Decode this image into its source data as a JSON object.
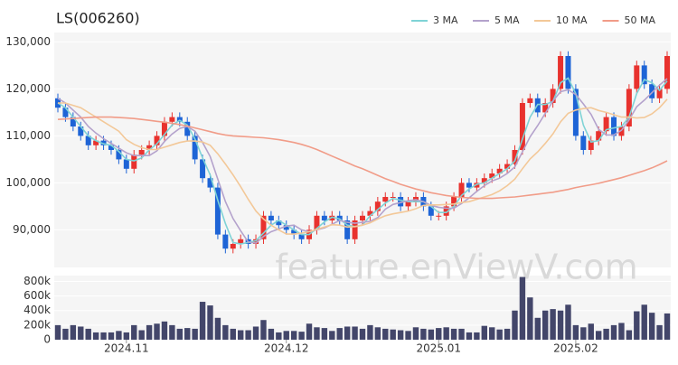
{
  "chart_data": {
    "type": "candlestick",
    "title": "LS(006260)",
    "watermark": "feature.enViewV.com",
    "categories": [
      null,
      null,
      null,
      null,
      null,
      null,
      null,
      null,
      null,
      "2024.11",
      null,
      null,
      null,
      null,
      null,
      null,
      null,
      null,
      null,
      null,
      null,
      null,
      null,
      null,
      null,
      null,
      null,
      null,
      null,
      null,
      "2024.12",
      null,
      null,
      null,
      null,
      null,
      null,
      null,
      null,
      null,
      null,
      null,
      null,
      null,
      null,
      null,
      null,
      null,
      null,
      null,
      "2025.01",
      null,
      null,
      null,
      null,
      null,
      null,
      null,
      null,
      null,
      null,
      null,
      null,
      null,
      null,
      null,
      null,
      null,
      "2025.02",
      null,
      null,
      null,
      null,
      null,
      null,
      null,
      null,
      null,
      null,
      null,
      null
    ],
    "open": [
      118000,
      116000,
      114000,
      112000,
      110000,
      108000,
      109000,
      108000,
      107000,
      105000,
      103000,
      106000,
      107000,
      108000,
      110000,
      113000,
      114000,
      113000,
      110000,
      105000,
      101000,
      99000,
      89000,
      86000,
      87000,
      88000,
      87000,
      88000,
      93000,
      92000,
      91000,
      90000,
      89000,
      88000,
      90000,
      93000,
      92000,
      93000,
      92000,
      88000,
      92000,
      93000,
      94000,
      96000,
      97000,
      97000,
      95000,
      96000,
      97000,
      95000,
      93000,
      93000,
      95000,
      97000,
      100000,
      99000,
      100000,
      101000,
      102000,
      103000,
      104000,
      107000,
      117000,
      118000,
      115000,
      117000,
      120000,
      127000,
      120000,
      110000,
      107000,
      109000,
      111000,
      114000,
      110000,
      112000,
      120000,
      125000,
      121000,
      118000,
      120000
    ],
    "high": [
      119000,
      117000,
      115000,
      113000,
      111000,
      110000,
      110000,
      109000,
      108000,
      106000,
      107000,
      108000,
      109000,
      111000,
      114000,
      115000,
      115000,
      114000,
      111000,
      106000,
      102000,
      100000,
      90000,
      88000,
      89000,
      89000,
      89000,
      94000,
      94000,
      93000,
      92000,
      91000,
      90000,
      91000,
      94000,
      94000,
      94000,
      94000,
      93000,
      93000,
      94000,
      95000,
      97000,
      98000,
      98000,
      98000,
      97000,
      98000,
      98000,
      96000,
      94000,
      96000,
      98000,
      101000,
      101000,
      101000,
      102000,
      103000,
      104000,
      105000,
      108000,
      118000,
      119000,
      119000,
      118000,
      121000,
      128000,
      128000,
      121000,
      111000,
      110000,
      112000,
      115000,
      115000,
      113000,
      121000,
      126000,
      126000,
      122000,
      121000,
      128000
    ],
    "low": [
      115000,
      113000,
      111000,
      109000,
      107000,
      107000,
      107000,
      106000,
      104000,
      102000,
      102000,
      105000,
      106000,
      107000,
      109000,
      112000,
      112000,
      109000,
      104000,
      100000,
      98000,
      88000,
      85000,
      85000,
      86000,
      86000,
      86000,
      87000,
      91000,
      90000,
      89000,
      88000,
      87000,
      87000,
      89000,
      91000,
      91000,
      91000,
      87000,
      87000,
      91000,
      92000,
      93000,
      95000,
      96000,
      94000,
      94000,
      95000,
      94000,
      92000,
      92000,
      92000,
      94000,
      96000,
      98000,
      98000,
      99000,
      100000,
      101000,
      102000,
      103000,
      106000,
      116000,
      114000,
      114000,
      116000,
      119000,
      119000,
      109000,
      106000,
      106000,
      108000,
      110000,
      109000,
      109000,
      111000,
      119000,
      120000,
      117000,
      117000,
      119000
    ],
    "close": [
      116000,
      114000,
      112000,
      110000,
      108000,
      109000,
      108000,
      107000,
      105000,
      103000,
      106000,
      107000,
      108000,
      110000,
      113000,
      114000,
      113000,
      110000,
      105000,
      101000,
      99000,
      89000,
      86000,
      87000,
      88000,
      87000,
      88000,
      93000,
      92000,
      91000,
      90000,
      89000,
      88000,
      90000,
      93000,
      92000,
      93000,
      92000,
      88000,
      92000,
      93000,
      94000,
      96000,
      97000,
      97000,
      95000,
      96000,
      97000,
      95000,
      93000,
      93000,
      95000,
      97000,
      100000,
      99000,
      100000,
      101000,
      102000,
      103000,
      104000,
      107000,
      117000,
      118000,
      115000,
      117000,
      120000,
      127000,
      120000,
      110000,
      107000,
      109000,
      111000,
      114000,
      110000,
      112000,
      120000,
      125000,
      121000,
      118000,
      120000,
      127000
    ],
    "up_color": "#e8322e",
    "down_color": "#1e64d6",
    "series": [
      {
        "name": "3 MA",
        "color": "#7fd3d6",
        "values": [
          117000,
          116000,
          114000,
          112000,
          110000,
          109000,
          108300,
          108000,
          106700,
          105000,
          104700,
          105300,
          107000,
          108300,
          110300,
          112300,
          113300,
          112300,
          109300,
          105300,
          101700,
          96300,
          91300,
          87300,
          87000,
          87300,
          87700,
          89300,
          91000,
          92000,
          91000,
          90000,
          89000,
          89000,
          90300,
          91700,
          92700,
          92300,
          91000,
          90700,
          91000,
          93000,
          94300,
          95700,
          96700,
          96300,
          96000,
          96000,
          96000,
          95000,
          93700,
          93700,
          95000,
          97300,
          98700,
          99700,
          100000,
          101000,
          102000,
          103000,
          104700,
          109300,
          114000,
          116700,
          116700,
          117300,
          121300,
          122300,
          119000,
          112300,
          108700,
          109000,
          111300,
          111700,
          112000,
          114000,
          119000,
          122000,
          121300,
          119700,
          121700
        ]
      },
      {
        "name": "5 MA",
        "color": "#b4a2cc",
        "values": [
          118000,
          117000,
          115500,
          114000,
          112000,
          110600,
          109400,
          108400,
          107400,
          106400,
          105800,
          105800,
          105800,
          106800,
          108800,
          110400,
          111600,
          112000,
          111000,
          108600,
          105600,
          100800,
          96000,
          92400,
          89800,
          87400,
          87200,
          88600,
          89600,
          90200,
          90800,
          91000,
          90000,
          89600,
          90000,
          90400,
          91200,
          92000,
          91600,
          91400,
          91600,
          91800,
          92600,
          94400,
          95400,
          95800,
          96200,
          96400,
          96000,
          95200,
          94800,
          94600,
          94600,
          95600,
          96800,
          98200,
          99400,
          100400,
          101000,
          102000,
          103400,
          106600,
          109800,
          112200,
          114800,
          117400,
          119400,
          119800,
          118800,
          116800,
          114600,
          111400,
          110200,
          110200,
          111200,
          113400,
          116200,
          117600,
          119200,
          120800,
          122200
        ]
      },
      {
        "name": "10 MA",
        "color": "#f3c898",
        "values": [
          117000,
          117000,
          116500,
          116000,
          115000,
          114000,
          113000,
          112000,
          111000,
          109200,
          108200,
          107500,
          107100,
          107100,
          107600,
          108100,
          108600,
          108900,
          108900,
          108700,
          108000,
          106200,
          104000,
          101700,
          99200,
          96500,
          94000,
          92300,
          91000,
          90000,
          89100,
          89100,
          89300,
          89600,
          90100,
          90600,
          91100,
          91000,
          90600,
          90700,
          91000,
          91500,
          92300,
          93000,
          93400,
          93700,
          94000,
          94500,
          95200,
          95300,
          95300,
          95400,
          95500,
          95800,
          96000,
          96500,
          97000,
          97500,
          98300,
          99400,
          100800,
          103000,
          105100,
          106600,
          108400,
          110400,
          113000,
          114800,
          115500,
          115800,
          116000,
          115400,
          115000,
          114500,
          114000,
          114000,
          113800,
          113900,
          114700,
          116000,
          117800
        ]
      },
      {
        "name": "50 MA",
        "color": "#f19c88",
        "values": [
          113500,
          113600,
          113700,
          113800,
          113900,
          114000,
          114000,
          114000,
          113900,
          113800,
          113700,
          113500,
          113300,
          113100,
          112900,
          112700,
          112400,
          112100,
          111700,
          111300,
          110900,
          110500,
          110200,
          110000,
          109900,
          109800,
          109700,
          109600,
          109400,
          109200,
          108900,
          108600,
          108200,
          107700,
          107100,
          106400,
          105700,
          105000,
          104300,
          103600,
          103000,
          102300,
          101600,
          100900,
          100300,
          99700,
          99200,
          98700,
          98300,
          97900,
          97600,
          97300,
          97100,
          96900,
          96800,
          96700,
          96700,
          96700,
          96800,
          96900,
          97000,
          97200,
          97400,
          97600,
          97800,
          98000,
          98300,
          98600,
          99000,
          99300,
          99600,
          99900,
          100300,
          100700,
          101100,
          101600,
          102100,
          102600,
          103200,
          103900,
          104700
        ]
      }
    ],
    "ylim": [
      82000,
      132000
    ],
    "yticks": [
      {
        "value": 90000,
        "label": "90,000"
      },
      {
        "value": 100000,
        "label": "100,000"
      },
      {
        "value": 110000,
        "label": "110,000"
      },
      {
        "value": 120000,
        "label": "120,000"
      },
      {
        "value": 130000,
        "label": "130,000"
      }
    ],
    "grid": true,
    "legend": "top-right",
    "volume": {
      "color": "#43466a",
      "ylim": [
        0,
        880000
      ],
      "yticks": [
        0,
        {
          "value": 200000,
          "label": "200k"
        },
        {
          "value": 400000,
          "label": "400k"
        },
        {
          "value": 600000,
          "label": "600k"
        },
        {
          "value": 800000,
          "label": "800k"
        }
      ],
      "values": [
        200000,
        150000,
        200000,
        180000,
        150000,
        100000,
        100000,
        100000,
        120000,
        100000,
        200000,
        130000,
        200000,
        220000,
        250000,
        200000,
        150000,
        160000,
        150000,
        520000,
        470000,
        300000,
        200000,
        150000,
        130000,
        130000,
        180000,
        270000,
        150000,
        100000,
        120000,
        120000,
        110000,
        220000,
        170000,
        160000,
        120000,
        160000,
        180000,
        180000,
        150000,
        200000,
        170000,
        150000,
        140000,
        130000,
        120000,
        170000,
        150000,
        140000,
        160000,
        170000,
        150000,
        150000,
        100000,
        100000,
        190000,
        170000,
        140000,
        150000,
        400000,
        860000,
        580000,
        300000,
        400000,
        420000,
        400000,
        480000,
        200000,
        170000,
        220000,
        120000,
        150000,
        200000,
        230000,
        130000,
        390000,
        480000,
        370000,
        200000,
        360000
      ]
    }
  }
}
